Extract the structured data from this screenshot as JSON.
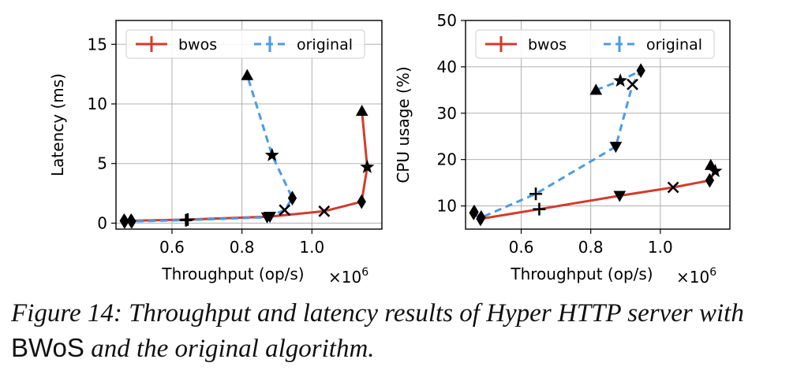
{
  "chart_data": [
    {
      "type": "line",
      "xlabel": "Throughput (op/s)",
      "x_multiplier": "×10",
      "x_multiplier_exp": "6",
      "ylabel": "Latency (ms)",
      "xlim": [
        0.44,
        1.2
      ],
      "ylim": [
        -0.5,
        17
      ],
      "xticks": [
        0.6,
        0.8,
        1.0
      ],
      "xtick_labels": [
        "0.6",
        "0.8",
        "1.0"
      ],
      "yticks": [
        0,
        5,
        10,
        15
      ],
      "ytick_labels": [
        "0",
        "5",
        "10",
        "15"
      ],
      "grid": true,
      "legend_position": "top",
      "series": [
        {
          "name": "bwos",
          "color": "#d33b2c",
          "style": "solid",
          "points": [
            {
              "x": 0.463,
              "y": 0.2,
              "marker": "diamond"
            },
            {
              "x": 0.483,
              "y": 0.2,
              "marker": "diamond"
            },
            {
              "x": 0.645,
              "y": 0.3,
              "marker": "plus"
            },
            {
              "x": 0.88,
              "y": 0.55,
              "marker": "triangle-down"
            },
            {
              "x": 1.035,
              "y": 1.0,
              "marker": "x"
            },
            {
              "x": 1.142,
              "y": 1.8,
              "marker": "diamond"
            },
            {
              "x": 1.158,
              "y": 4.7,
              "marker": "star"
            },
            {
              "x": 1.143,
              "y": 9.4,
              "marker": "triangle-up"
            }
          ]
        },
        {
          "name": "original",
          "color": "#4a9be8",
          "style": "dashed",
          "points": [
            {
              "x": 0.465,
              "y": 0.15,
              "marker": "diamond"
            },
            {
              "x": 0.485,
              "y": 0.15,
              "marker": "diamond"
            },
            {
              "x": 0.64,
              "y": 0.25,
              "marker": "plus"
            },
            {
              "x": 0.872,
              "y": 0.5,
              "marker": "triangle-down"
            },
            {
              "x": 0.922,
              "y": 1.1,
              "marker": "x"
            },
            {
              "x": 0.944,
              "y": 2.1,
              "marker": "diamond"
            },
            {
              "x": 0.886,
              "y": 5.7,
              "marker": "star"
            },
            {
              "x": 0.815,
              "y": 12.4,
              "marker": "triangle-up"
            }
          ]
        }
      ]
    },
    {
      "type": "line",
      "xlabel": "Throughput (op/s)",
      "x_multiplier": "×10",
      "x_multiplier_exp": "6",
      "ylabel": "CPU usage (%)",
      "xlim": [
        0.44,
        1.2
      ],
      "ylim": [
        5,
        50
      ],
      "xticks": [
        0.6,
        0.8,
        1.0
      ],
      "xtick_labels": [
        "0.6",
        "0.8",
        "1.0"
      ],
      "yticks": [
        10,
        20,
        30,
        40,
        50
      ],
      "ytick_labels": [
        "10",
        "20",
        "30",
        "40",
        "50"
      ],
      "grid": true,
      "legend_position": "top",
      "series": [
        {
          "name": "bwos",
          "color": "#d33b2c",
          "style": "solid",
          "points": [
            {
              "x": 0.463,
              "y": 8.5,
              "marker": "diamond"
            },
            {
              "x": 0.483,
              "y": 7.2,
              "marker": "diamond"
            },
            {
              "x": 0.652,
              "y": 9.3,
              "marker": "plus"
            },
            {
              "x": 0.883,
              "y": 12.2,
              "marker": "triangle-down"
            },
            {
              "x": 1.037,
              "y": 14.0,
              "marker": "x"
            },
            {
              "x": 1.142,
              "y": 15.5,
              "marker": "diamond"
            },
            {
              "x": 1.158,
              "y": 17.5,
              "marker": "star"
            },
            {
              "x": 1.145,
              "y": 18.8,
              "marker": "triangle-up"
            }
          ]
        },
        {
          "name": "original",
          "color": "#4a9be8",
          "style": "dashed",
          "points": [
            {
              "x": 0.465,
              "y": 8.7,
              "marker": "diamond"
            },
            {
              "x": 0.485,
              "y": 7.5,
              "marker": "diamond"
            },
            {
              "x": 0.642,
              "y": 12.6,
              "marker": "plus"
            },
            {
              "x": 0.872,
              "y": 22.8,
              "marker": "triangle-down"
            },
            {
              "x": 0.92,
              "y": 36.2,
              "marker": "x"
            },
            {
              "x": 0.944,
              "y": 39.2,
              "marker": "diamond"
            },
            {
              "x": 0.885,
              "y": 37.0,
              "marker": "star"
            },
            {
              "x": 0.815,
              "y": 35.0,
              "marker": "triangle-up"
            }
          ]
        }
      ]
    }
  ],
  "caption": {
    "text_before": "Figure 14: Throughput and latency results of Hyper HTTP server with ",
    "system_name": "BWoS",
    "text_after": " and the original algorithm."
  }
}
